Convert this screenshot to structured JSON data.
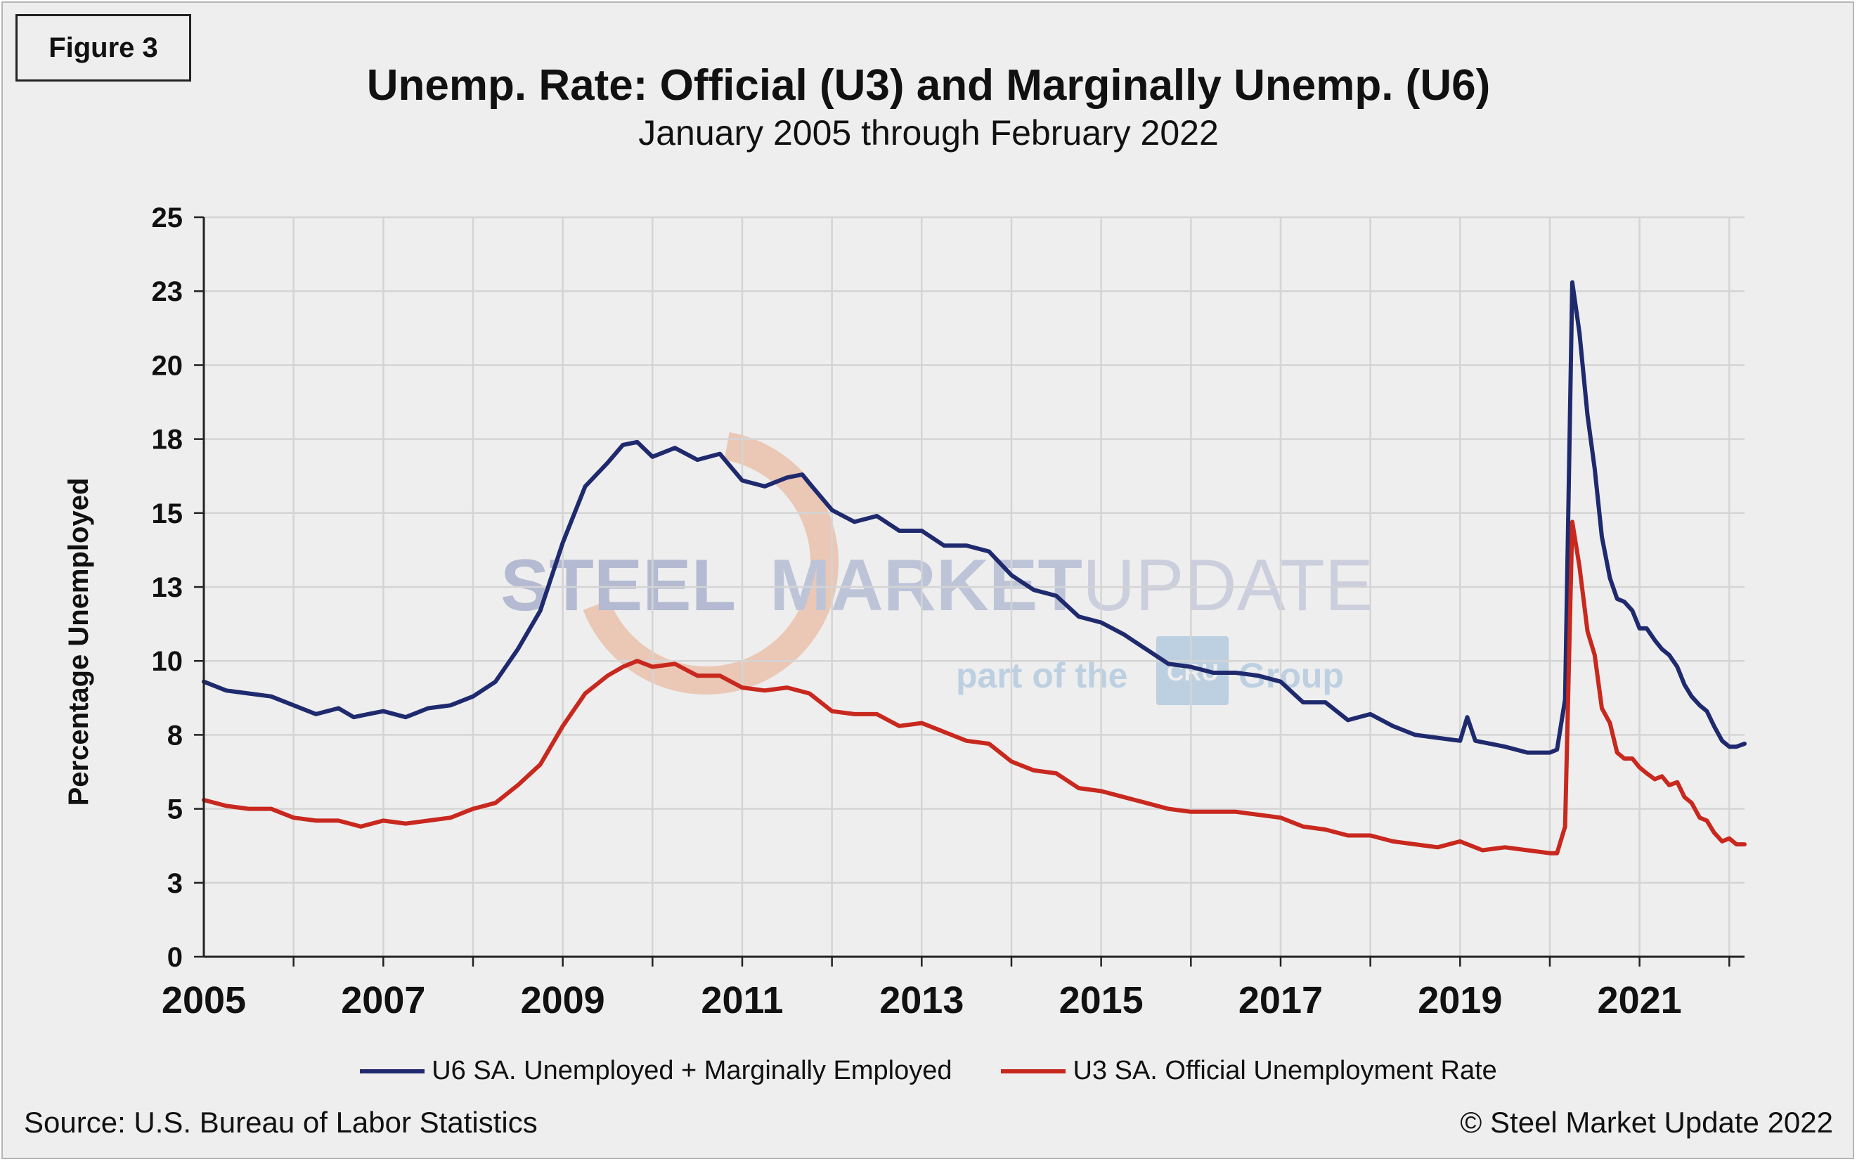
{
  "figure_label": "Figure 3",
  "source": "Source: U.S. Bureau  of Labor Statistics",
  "copyright": "© Steel Market Update 2022",
  "watermark": {
    "brand_bold": "STEEL",
    "brand_mid": "MARKET",
    "brand_light": "UPDATE",
    "tagline_a": "part of the",
    "tagline_logo": "CRU",
    "tagline_b": "Group"
  },
  "colors": {
    "u6": "#1f2a6e",
    "u3": "#c8281e",
    "grid": "#d4d4d4",
    "axis": "#222222",
    "background": "#eeeeee"
  },
  "chart_data": {
    "type": "line",
    "title": "Unemp. Rate: Official (U3) and Marginally Unemp. (U6)",
    "subtitle": "January 2005 through February 2022",
    "xlabel": "",
    "ylabel": "Percentage Unemployed",
    "ylim": [
      0,
      25
    ],
    "yticks": [
      0,
      2.5,
      5,
      7.5,
      10,
      12.5,
      15,
      17.5,
      20,
      22.5,
      25
    ],
    "ytick_labels": [
      "0",
      "3",
      "5",
      "8",
      "10",
      "13",
      "15",
      "18",
      "20",
      "23",
      "25"
    ],
    "xlim": [
      2005,
      2022.17
    ],
    "xticks": [
      2005,
      2007,
      2009,
      2011,
      2013,
      2015,
      2017,
      2019,
      2021
    ],
    "xtick_labels": [
      "2005",
      "2007",
      "2009",
      "2011",
      "2013",
      "2015",
      "2017",
      "2019",
      "2021"
    ],
    "grid": true,
    "legend_position": "bottom",
    "series": [
      {
        "name": "U6 SA. Unemployed + Marginally Employed",
        "points": [
          [
            2005.0,
            9.3
          ],
          [
            2005.25,
            9.0
          ],
          [
            2005.5,
            8.9
          ],
          [
            2005.75,
            8.8
          ],
          [
            2006.0,
            8.5
          ],
          [
            2006.25,
            8.2
          ],
          [
            2006.5,
            8.4
          ],
          [
            2006.67,
            8.1
          ],
          [
            2006.83,
            8.2
          ],
          [
            2007.0,
            8.3
          ],
          [
            2007.25,
            8.1
          ],
          [
            2007.5,
            8.4
          ],
          [
            2007.75,
            8.5
          ],
          [
            2008.0,
            8.8
          ],
          [
            2008.25,
            9.3
          ],
          [
            2008.5,
            10.4
          ],
          [
            2008.75,
            11.7
          ],
          [
            2009.0,
            14.0
          ],
          [
            2009.25,
            15.9
          ],
          [
            2009.5,
            16.7
          ],
          [
            2009.67,
            17.3
          ],
          [
            2009.83,
            17.4
          ],
          [
            2010.0,
            16.9
          ],
          [
            2010.25,
            17.2
          ],
          [
            2010.5,
            16.8
          ],
          [
            2010.75,
            17.0
          ],
          [
            2011.0,
            16.1
          ],
          [
            2011.25,
            15.9
          ],
          [
            2011.5,
            16.2
          ],
          [
            2011.67,
            16.3
          ],
          [
            2011.75,
            16.0
          ],
          [
            2012.0,
            15.1
          ],
          [
            2012.25,
            14.7
          ],
          [
            2012.5,
            14.9
          ],
          [
            2012.75,
            14.4
          ],
          [
            2013.0,
            14.4
          ],
          [
            2013.25,
            13.9
          ],
          [
            2013.5,
            13.9
          ],
          [
            2013.75,
            13.7
          ],
          [
            2014.0,
            12.9
          ],
          [
            2014.25,
            12.4
          ],
          [
            2014.5,
            12.2
          ],
          [
            2014.75,
            11.5
          ],
          [
            2015.0,
            11.3
          ],
          [
            2015.25,
            10.9
          ],
          [
            2015.5,
            10.4
          ],
          [
            2015.75,
            9.9
          ],
          [
            2016.0,
            9.8
          ],
          [
            2016.25,
            9.6
          ],
          [
            2016.5,
            9.6
          ],
          [
            2016.75,
            9.5
          ],
          [
            2017.0,
            9.3
          ],
          [
            2017.25,
            8.6
          ],
          [
            2017.5,
            8.6
          ],
          [
            2017.75,
            8.0
          ],
          [
            2018.0,
            8.2
          ],
          [
            2018.25,
            7.8
          ],
          [
            2018.5,
            7.5
          ],
          [
            2018.75,
            7.4
          ],
          [
            2019.0,
            7.3
          ],
          [
            2019.08,
            8.1
          ],
          [
            2019.17,
            7.3
          ],
          [
            2019.5,
            7.1
          ],
          [
            2019.75,
            6.9
          ],
          [
            2020.0,
            6.9
          ],
          [
            2020.08,
            7.0
          ],
          [
            2020.17,
            8.7
          ],
          [
            2020.25,
            22.8
          ],
          [
            2020.33,
            21.1
          ],
          [
            2020.42,
            18.3
          ],
          [
            2020.5,
            16.5
          ],
          [
            2020.58,
            14.2
          ],
          [
            2020.67,
            12.8
          ],
          [
            2020.75,
            12.1
          ],
          [
            2020.83,
            12.0
          ],
          [
            2020.92,
            11.7
          ],
          [
            2021.0,
            11.1
          ],
          [
            2021.08,
            11.1
          ],
          [
            2021.17,
            10.7
          ],
          [
            2021.25,
            10.4
          ],
          [
            2021.33,
            10.2
          ],
          [
            2021.42,
            9.8
          ],
          [
            2021.5,
            9.2
          ],
          [
            2021.58,
            8.8
          ],
          [
            2021.67,
            8.5
          ],
          [
            2021.75,
            8.3
          ],
          [
            2021.83,
            7.8
          ],
          [
            2021.92,
            7.3
          ],
          [
            2022.0,
            7.1
          ],
          [
            2022.08,
            7.1
          ],
          [
            2022.17,
            7.2
          ]
        ]
      },
      {
        "name": "U3 SA. Official Unemployment Rate",
        "points": [
          [
            2005.0,
            5.3
          ],
          [
            2005.25,
            5.1
          ],
          [
            2005.5,
            5.0
          ],
          [
            2005.75,
            5.0
          ],
          [
            2006.0,
            4.7
          ],
          [
            2006.25,
            4.6
          ],
          [
            2006.5,
            4.6
          ],
          [
            2006.75,
            4.4
          ],
          [
            2007.0,
            4.6
          ],
          [
            2007.25,
            4.5
          ],
          [
            2007.5,
            4.6
          ],
          [
            2007.75,
            4.7
          ],
          [
            2008.0,
            5.0
          ],
          [
            2008.25,
            5.2
          ],
          [
            2008.5,
            5.8
          ],
          [
            2008.75,
            6.5
          ],
          [
            2009.0,
            7.8
          ],
          [
            2009.25,
            8.9
          ],
          [
            2009.5,
            9.5
          ],
          [
            2009.67,
            9.8
          ],
          [
            2009.83,
            10.0
          ],
          [
            2010.0,
            9.8
          ],
          [
            2010.25,
            9.9
          ],
          [
            2010.5,
            9.5
          ],
          [
            2010.75,
            9.5
          ],
          [
            2011.0,
            9.1
          ],
          [
            2011.25,
            9.0
          ],
          [
            2011.5,
            9.1
          ],
          [
            2011.75,
            8.9
          ],
          [
            2012.0,
            8.3
          ],
          [
            2012.25,
            8.2
          ],
          [
            2012.5,
            8.2
          ],
          [
            2012.75,
            7.8
          ],
          [
            2013.0,
            7.9
          ],
          [
            2013.25,
            7.6
          ],
          [
            2013.5,
            7.3
          ],
          [
            2013.75,
            7.2
          ],
          [
            2014.0,
            6.6
          ],
          [
            2014.25,
            6.3
          ],
          [
            2014.5,
            6.2
          ],
          [
            2014.75,
            5.7
          ],
          [
            2015.0,
            5.6
          ],
          [
            2015.25,
            5.4
          ],
          [
            2015.5,
            5.2
          ],
          [
            2015.75,
            5.0
          ],
          [
            2016.0,
            4.9
          ],
          [
            2016.25,
            4.9
          ],
          [
            2016.5,
            4.9
          ],
          [
            2016.75,
            4.8
          ],
          [
            2017.0,
            4.7
          ],
          [
            2017.25,
            4.4
          ],
          [
            2017.5,
            4.3
          ],
          [
            2017.75,
            4.1
          ],
          [
            2018.0,
            4.1
          ],
          [
            2018.25,
            3.9
          ],
          [
            2018.5,
            3.8
          ],
          [
            2018.75,
            3.7
          ],
          [
            2019.0,
            3.9
          ],
          [
            2019.25,
            3.6
          ],
          [
            2019.5,
            3.7
          ],
          [
            2019.75,
            3.6
          ],
          [
            2020.0,
            3.5
          ],
          [
            2020.08,
            3.5
          ],
          [
            2020.17,
            4.4
          ],
          [
            2020.25,
            14.7
          ],
          [
            2020.33,
            13.2
          ],
          [
            2020.42,
            11.0
          ],
          [
            2020.5,
            10.2
          ],
          [
            2020.58,
            8.4
          ],
          [
            2020.67,
            7.9
          ],
          [
            2020.75,
            6.9
          ],
          [
            2020.83,
            6.7
          ],
          [
            2020.92,
            6.7
          ],
          [
            2021.0,
            6.4
          ],
          [
            2021.08,
            6.2
          ],
          [
            2021.17,
            6.0
          ],
          [
            2021.25,
            6.1
          ],
          [
            2021.33,
            5.8
          ],
          [
            2021.42,
            5.9
          ],
          [
            2021.5,
            5.4
          ],
          [
            2021.58,
            5.2
          ],
          [
            2021.67,
            4.7
          ],
          [
            2021.75,
            4.6
          ],
          [
            2021.83,
            4.2
          ],
          [
            2021.92,
            3.9
          ],
          [
            2022.0,
            4.0
          ],
          [
            2022.08,
            3.8
          ],
          [
            2022.17,
            3.8
          ]
        ]
      }
    ]
  }
}
